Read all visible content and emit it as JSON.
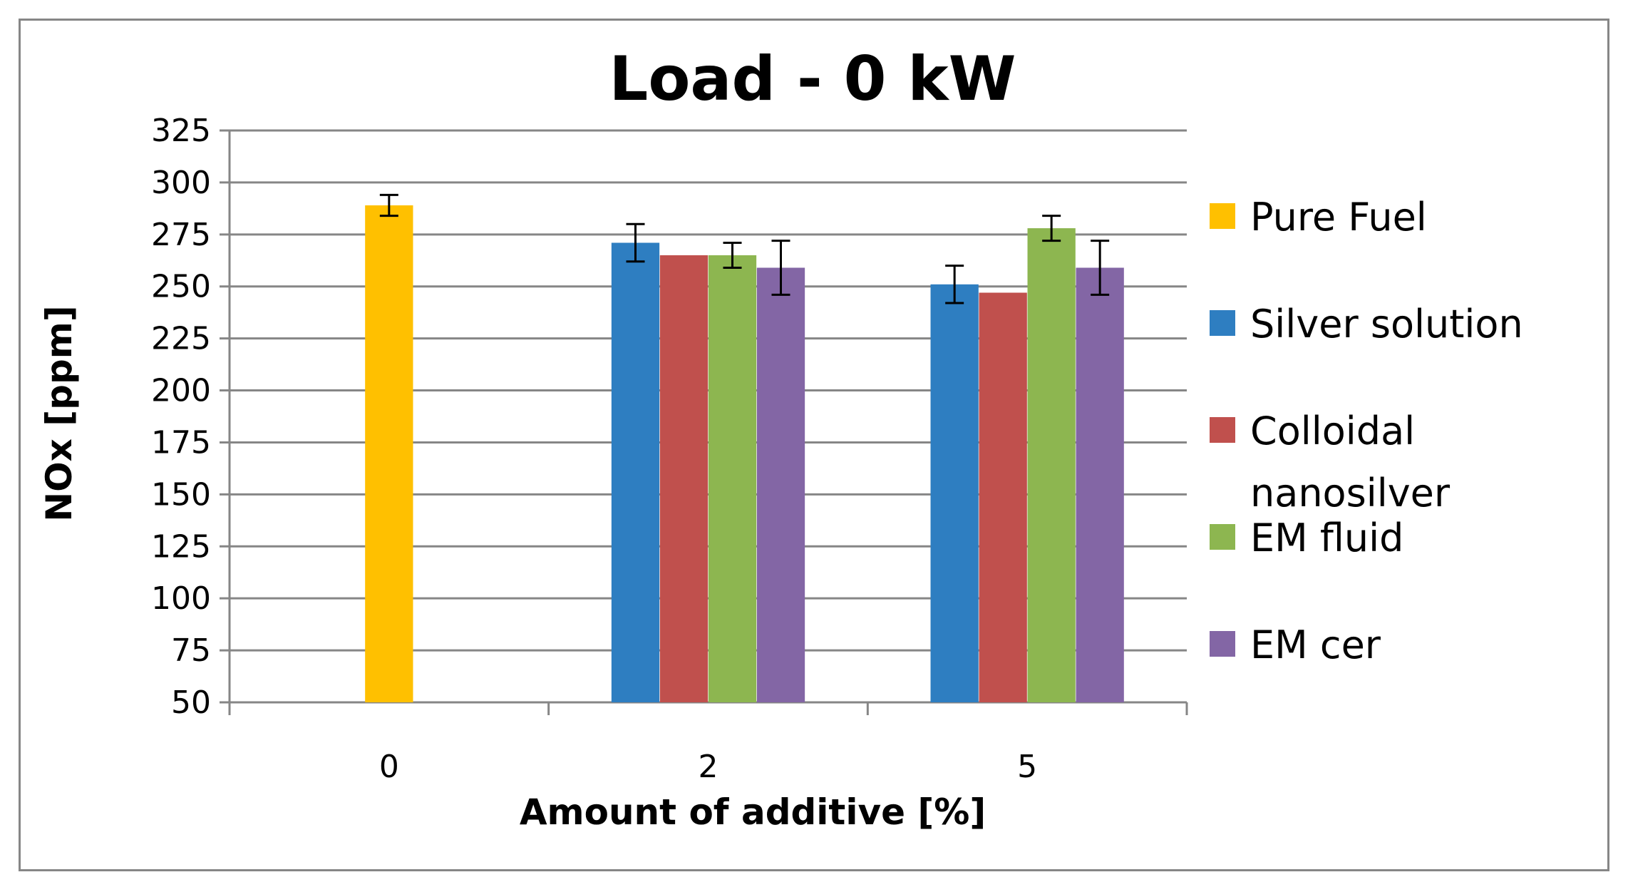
{
  "chart_data": {
    "type": "bar",
    "title": "Load - 0 kW",
    "xlabel": "Amount of additive [%]",
    "ylabel": "NOx [ppm]",
    "categories": [
      "0",
      "2",
      "5"
    ],
    "ylim": [
      50,
      325
    ],
    "yticks": [
      50,
      75,
      100,
      125,
      150,
      175,
      200,
      225,
      250,
      275,
      300,
      325
    ],
    "grid": true,
    "legend_position": "right",
    "series": [
      {
        "name": "Pure Fuel",
        "color": "#FFC000",
        "values": [
          289,
          null,
          null
        ],
        "errors": [
          5,
          null,
          null
        ]
      },
      {
        "name": "Silver solution",
        "color": "#2E7EC1",
        "values": [
          null,
          271,
          251
        ],
        "errors": [
          null,
          9,
          9
        ]
      },
      {
        "name": "Colloidal nanosilver",
        "color": "#C0504D",
        "values": [
          null,
          265,
          247
        ],
        "errors": [
          null,
          null,
          null
        ]
      },
      {
        "name": "EM fluid",
        "color": "#8DB650",
        "values": [
          null,
          265,
          278
        ],
        "errors": [
          null,
          6,
          6
        ]
      },
      {
        "name": "EM cer",
        "color": "#8366A5",
        "values": [
          null,
          259,
          259
        ],
        "errors": [
          null,
          13,
          13
        ]
      }
    ],
    "legend_lines": [
      [
        "Pure Fuel"
      ],
      [
        "Silver solution"
      ],
      [
        "Colloidal",
        "nanosilver"
      ],
      [
        "EM fluid"
      ],
      [
        "EM cer"
      ]
    ]
  }
}
